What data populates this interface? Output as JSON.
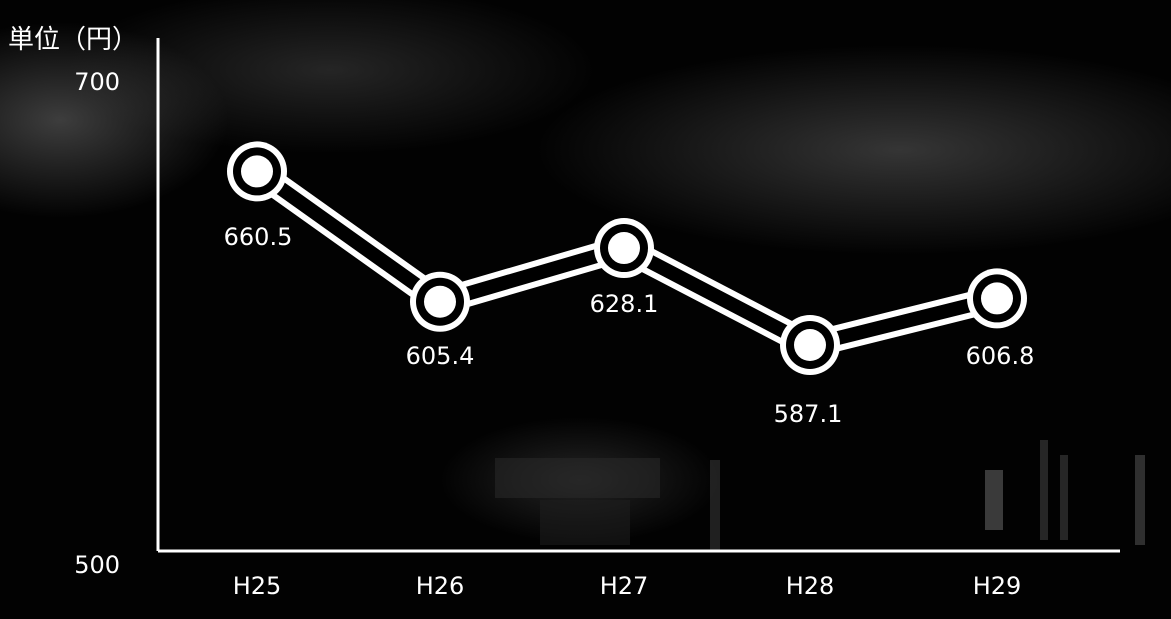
{
  "chart_data": {
    "type": "line",
    "unit_label": "単位（円）",
    "categories": [
      "H25",
      "H26",
      "H27",
      "H28",
      "H29"
    ],
    "series": [
      {
        "values": [
          660.5,
          605.4,
          628.1,
          587.1,
          606.8
        ]
      }
    ],
    "data_labels": [
      "660.5",
      "605.4",
      "628.1",
      "587.1",
      "606.8"
    ],
    "y_ticks": [
      "700",
      "500"
    ],
    "ylim": [
      500,
      700
    ],
    "grid": false,
    "legend": "none",
    "colors": {
      "line": "#ffffff",
      "background": "#000000"
    }
  }
}
